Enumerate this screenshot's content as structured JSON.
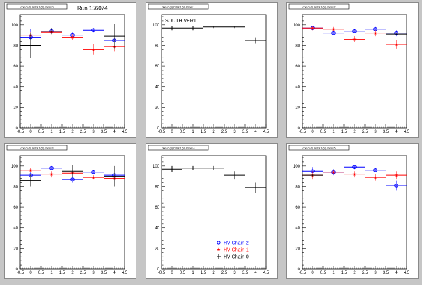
{
  "page": {
    "run_label": "Run 156074",
    "south_label": "SOUTH VERT",
    "legend": [
      {
        "label": "HV Chain 2",
        "color": "#0000ff",
        "marker": "circle"
      },
      {
        "label": "HV Chain 1",
        "color": "#ff0000",
        "marker": "star"
      },
      {
        "label": "HV Chain 0",
        "color": "#000000",
        "marker": "cross"
      }
    ]
  },
  "chart_data": [
    {
      "type": "scatter",
      "title": "",
      "pad_title": "dom 0 (0) Octnt 1 (V) Panel 0",
      "xlim": [
        -0.5,
        4.5
      ],
      "ylim": [
        0,
        110
      ],
      "xticks": [
        "-0.5",
        "0",
        "0.5",
        "1",
        "1.5",
        "2",
        "2.5",
        "3",
        "3.5",
        "4",
        "4.5"
      ],
      "yticks": [
        "0",
        "20",
        "40",
        "60",
        "80",
        "100"
      ],
      "series": [
        {
          "name": "HV Chain 2",
          "color": "#0000ff",
          "points": [
            [
              0,
              88,
              8
            ],
            [
              1,
              94,
              3
            ],
            [
              2,
              90,
              3
            ],
            [
              3,
              95,
              2
            ],
            [
              4,
              85,
              4
            ]
          ]
        },
        {
          "name": "HV Chain 1",
          "color": "#ff0000",
          "points": [
            [
              0,
              90,
              3
            ],
            [
              1,
              93,
              2
            ],
            [
              2,
              88,
              3
            ],
            [
              3,
              76,
              5
            ],
            [
              4,
              79,
              5
            ]
          ]
        },
        {
          "name": "HV Chain 0",
          "color": "#000000",
          "points": [
            [
              0,
              80,
              12
            ],
            [
              1,
              94,
              3
            ],
            [
              4,
              89,
              12
            ]
          ]
        }
      ]
    },
    {
      "type": "scatter",
      "title": "",
      "pad_title": "dom 0 (0) Octnt 1 (V) Panel 1",
      "xlim": [
        -0.5,
        4.5
      ],
      "ylim": [
        0,
        110
      ],
      "xticks": [
        "-0.5",
        "0",
        "0.5",
        "1",
        "1.5",
        "2",
        "2.5",
        "3",
        "3.5",
        "4",
        "4.5"
      ],
      "yticks": [
        "0",
        "20",
        "40",
        "60",
        "80",
        "100"
      ],
      "series": [
        {
          "name": "HV Chain 0",
          "color": "#000000",
          "points": [
            [
              0,
              97,
              2
            ],
            [
              1,
              97,
              2
            ],
            [
              2,
              98,
              1
            ],
            [
              3,
              98,
              1
            ],
            [
              4,
              85,
              3
            ]
          ]
        }
      ]
    },
    {
      "type": "scatter",
      "title": "",
      "pad_title": "dom 0 (0) Octnt 1 (V) Panel 2",
      "xlim": [
        -0.5,
        4.5
      ],
      "ylim": [
        0,
        110
      ],
      "xticks": [
        "-0.5",
        "0",
        "0.5",
        "1",
        "1.5",
        "2",
        "2.5",
        "3",
        "3.5",
        "4",
        "4.5"
      ],
      "yticks": [
        "0",
        "20",
        "40",
        "60",
        "80",
        "100"
      ],
      "series": [
        {
          "name": "HV Chain 2",
          "color": "#0000ff",
          "points": [
            [
              0,
              97,
              2
            ],
            [
              1,
              92,
              2
            ],
            [
              2,
              94,
              2
            ],
            [
              3,
              96,
              2
            ],
            [
              4,
              92,
              3
            ]
          ]
        },
        {
          "name": "HV Chain 1",
          "color": "#ff0000",
          "points": [
            [
              0,
              97,
              2
            ],
            [
              1,
              96,
              2
            ],
            [
              2,
              86,
              3
            ],
            [
              3,
              92,
              3
            ],
            [
              4,
              81,
              4
            ]
          ]
        },
        {
          "name": "HV Chain 0",
          "color": "#000000",
          "points": [
            [
              4,
              91,
              1
            ]
          ]
        }
      ]
    },
    {
      "type": "scatter",
      "title": "",
      "pad_title": "dom 0 (0) Octnt 1 (V) Panel 3",
      "xlim": [
        -0.5,
        4.5
      ],
      "ylim": [
        0,
        110
      ],
      "xticks": [
        "-0.5",
        "0",
        "0.5",
        "1",
        "1.5",
        "2",
        "2.5",
        "3",
        "3.5",
        "4",
        "4.5"
      ],
      "yticks": [
        "0",
        "20",
        "40",
        "60",
        "80",
        "100"
      ],
      "series": [
        {
          "name": "HV Chain 2",
          "color": "#0000ff",
          "points": [
            [
              0,
              91,
              3
            ],
            [
              1,
              98,
              2
            ],
            [
              2,
              87,
              3
            ],
            [
              3,
              94,
              2
            ],
            [
              4,
              91,
              2
            ]
          ]
        },
        {
          "name": "HV Chain 1",
          "color": "#ff0000",
          "points": [
            [
              0,
              96,
              2
            ],
            [
              1,
              92,
              3
            ],
            [
              2,
              93,
              3
            ],
            [
              3,
              89,
              2
            ],
            [
              4,
              88,
              2
            ]
          ]
        },
        {
          "name": "HV Chain 0",
          "color": "#000000",
          "points": [
            [
              0,
              86,
              6
            ],
            [
              2,
              95,
              6
            ],
            [
              4,
              90,
              10
            ]
          ]
        }
      ]
    },
    {
      "type": "scatter",
      "title": "",
      "pad_title": "dom 0 (0) Octnt 1 (V) Panel 4",
      "xlim": [
        -0.5,
        4.5
      ],
      "ylim": [
        0,
        110
      ],
      "xticks": [
        "-0.5",
        "0",
        "0.5",
        "1",
        "1.5",
        "2",
        "2.5",
        "3",
        "3.5",
        "4",
        "4.5"
      ],
      "yticks": [
        "0",
        "20",
        "40",
        "60",
        "80",
        "100"
      ],
      "series": [
        {
          "name": "HV Chain 0",
          "color": "#000000",
          "points": [
            [
              0,
              97,
              3
            ],
            [
              1,
              98,
              2
            ],
            [
              2,
              98,
              2
            ],
            [
              3,
              91,
              4
            ],
            [
              4,
              79,
              5
            ]
          ]
        }
      ]
    },
    {
      "type": "scatter",
      "title": "",
      "pad_title": "dom 0 (0) Octnt 1 (V) Panel 5",
      "xlim": [
        -0.5,
        4.5
      ],
      "ylim": [
        0,
        110
      ],
      "xticks": [
        "-0.5",
        "0",
        "0.5",
        "1",
        "1.5",
        "2",
        "2.5",
        "3",
        "3.5",
        "4",
        "4.5"
      ],
      "yticks": [
        "0",
        "20",
        "40",
        "60",
        "80",
        "100"
      ],
      "series": [
        {
          "name": "HV Chain 2",
          "color": "#0000ff",
          "points": [
            [
              0,
              95,
              4
            ],
            [
              1,
              94,
              3
            ],
            [
              2,
              99,
              2
            ],
            [
              3,
              96,
              2
            ],
            [
              4,
              81,
              5
            ]
          ]
        },
        {
          "name": "HV Chain 1",
          "color": "#ff0000",
          "points": [
            [
              0,
              91,
              4
            ],
            [
              1,
              94,
              2
            ],
            [
              2,
              92,
              3
            ],
            [
              3,
              89,
              3
            ],
            [
              4,
              91,
              4
            ]
          ]
        },
        {
          "name": "HV Chain 0",
          "color": "#000000",
          "points": [
            [
              0,
              91,
              1
            ]
          ]
        }
      ]
    }
  ]
}
